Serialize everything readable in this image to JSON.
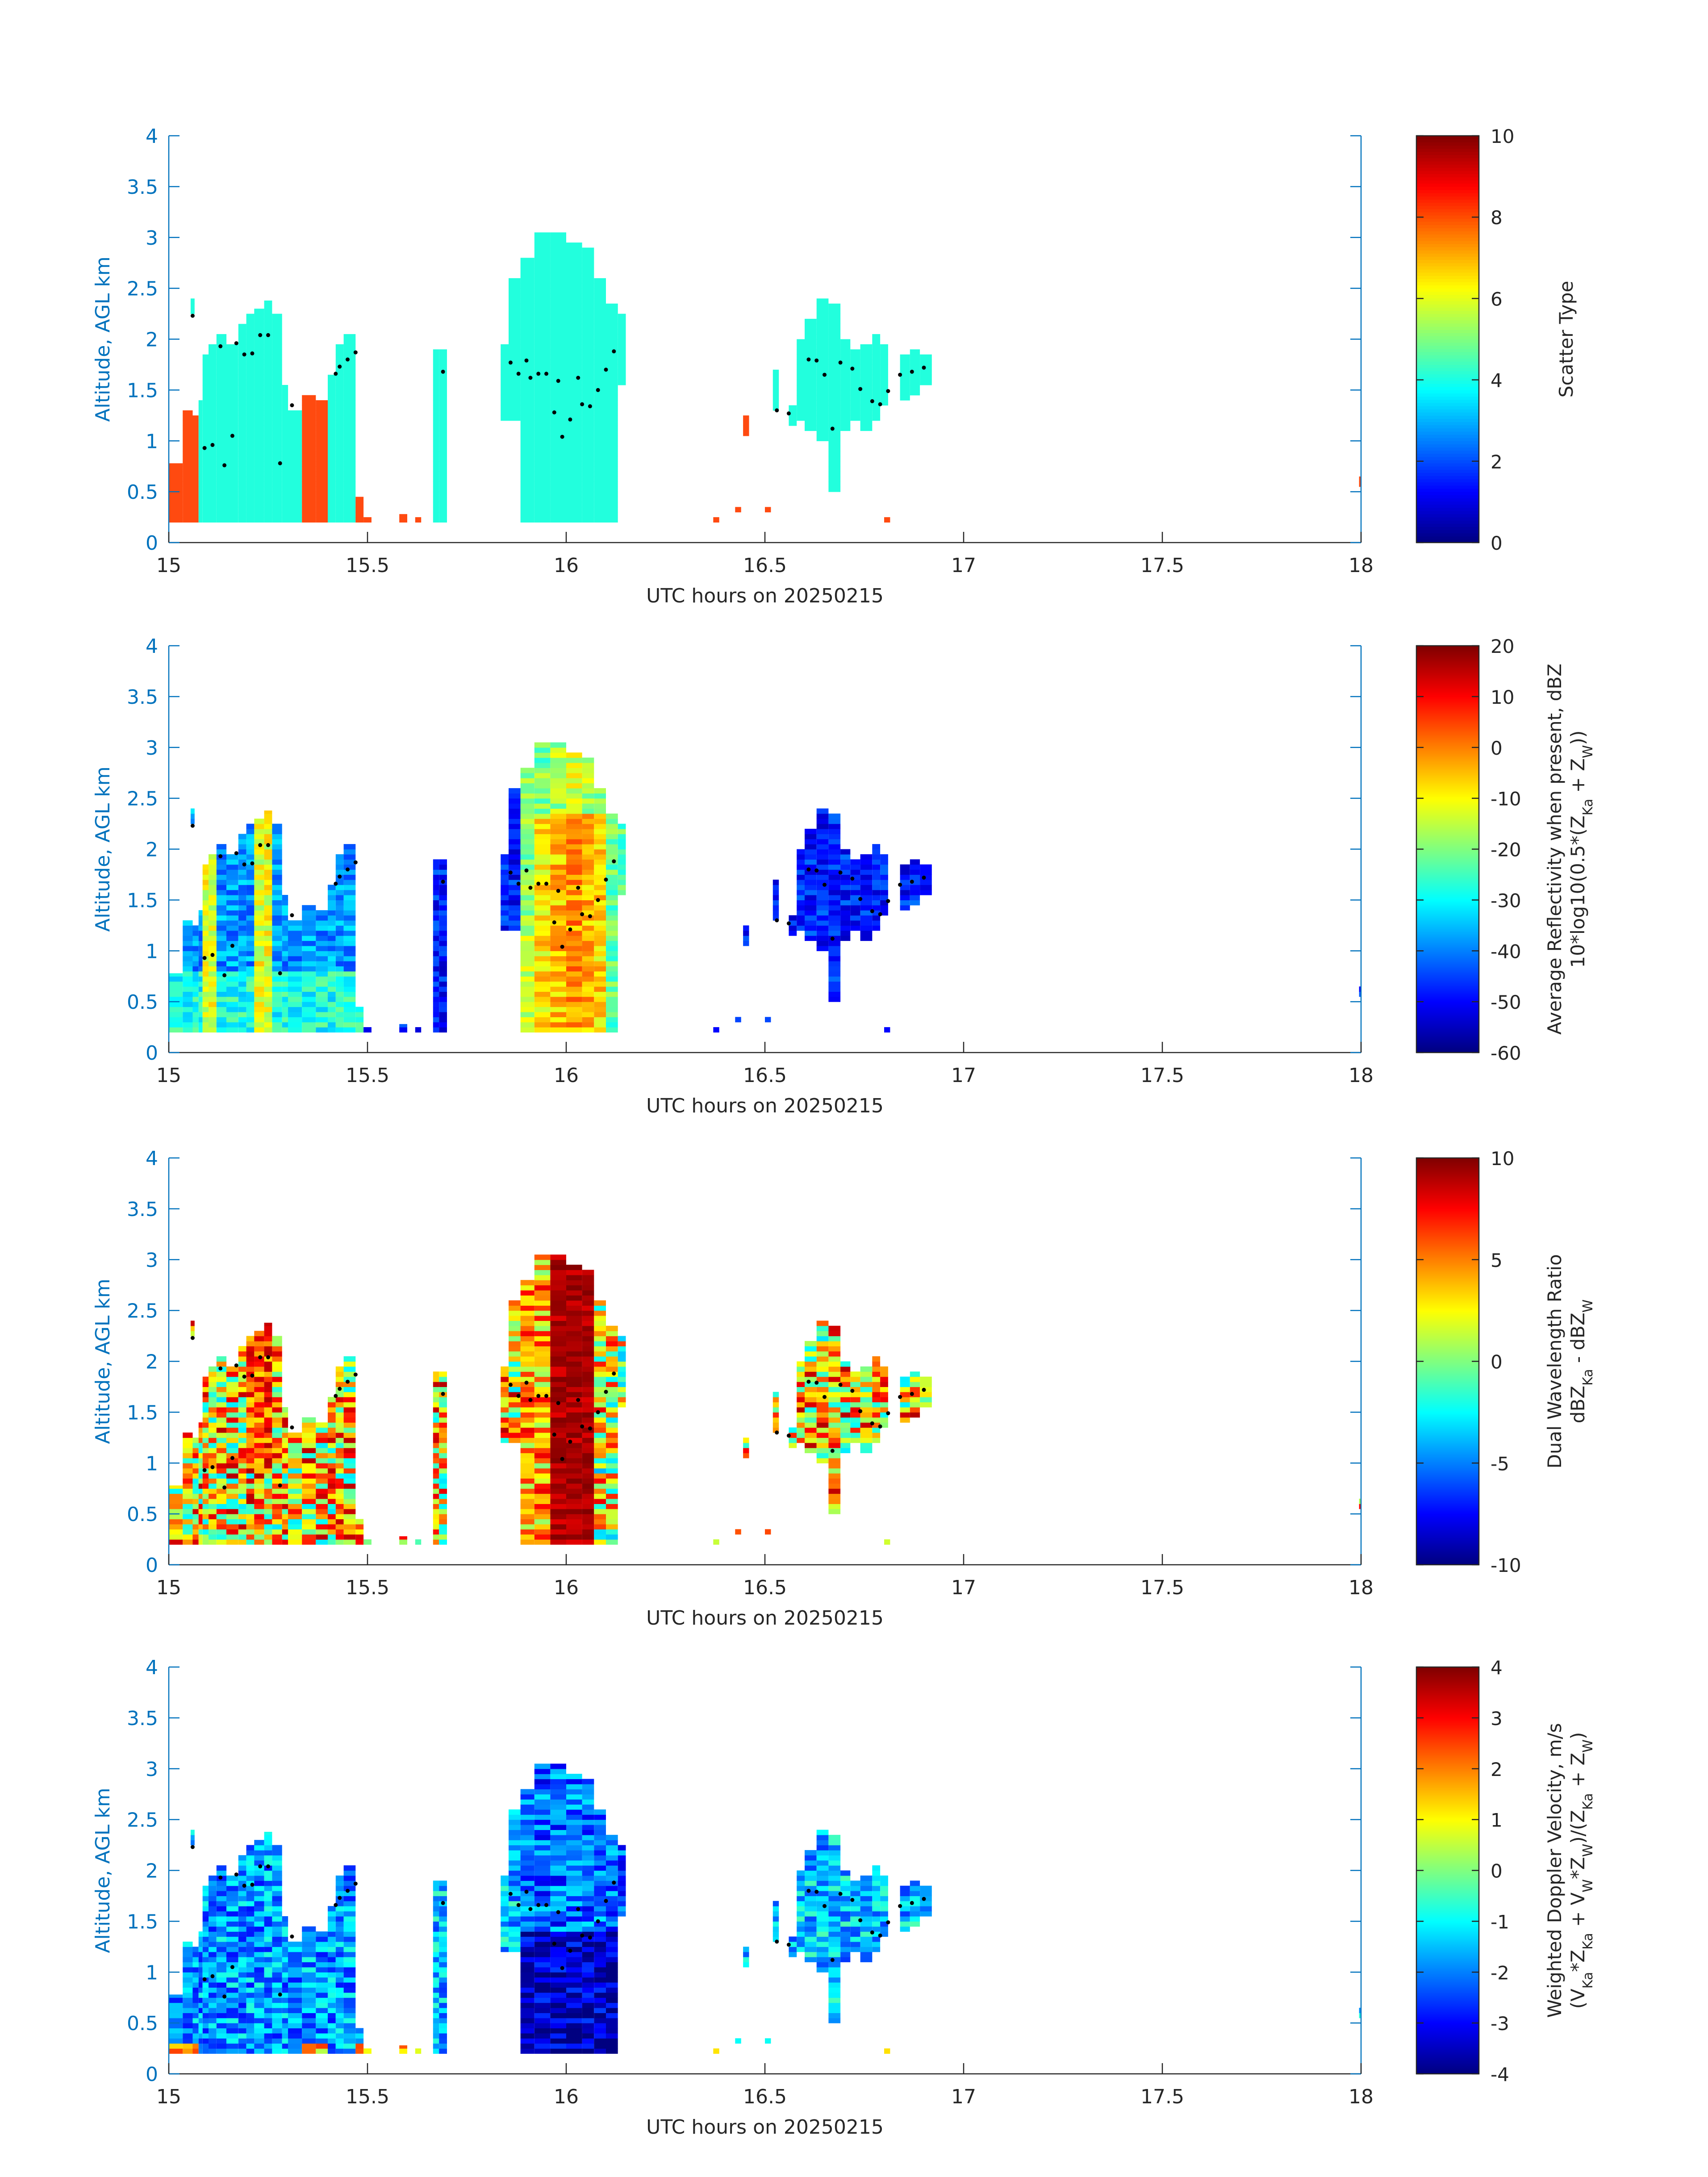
{
  "colors": {
    "axis_blue": "#0072bd",
    "text_dark": "#262626",
    "background": "#ffffff",
    "scatter_ice": "#22ffdd",
    "scatter_liquid": "#ff4a10"
  },
  "chart_data": [
    {
      "type": "heatmap",
      "title": "",
      "xlabel": "UTC hours on 20250215",
      "ylabel": "Altitude, AGL km",
      "xlim": [
        15,
        18
      ],
      "ylim": [
        0,
        4
      ],
      "xticks": [
        "15",
        "15.5",
        "16",
        "16.5",
        "17",
        "17.5",
        "18"
      ],
      "yticks": [
        "0",
        "0.5",
        "1",
        "1.5",
        "2",
        "2.5",
        "3",
        "3.5",
        "4"
      ],
      "colorbar": {
        "label_lines": [
          "Scatter Type"
        ],
        "range": [
          0,
          10
        ],
        "ticks": [
          "0",
          "2",
          "4",
          "6",
          "8",
          "10"
        ],
        "tick_values": [
          0,
          2,
          4,
          6,
          8,
          10
        ]
      },
      "field": "scatter",
      "series": []
    },
    {
      "type": "heatmap",
      "title": "",
      "xlabel": "UTC hours on 20250215",
      "ylabel": "Altitude, AGL km",
      "xlim": [
        15,
        18
      ],
      "ylim": [
        0,
        4
      ],
      "xticks": [
        "15",
        "15.5",
        "16",
        "16.5",
        "17",
        "17.5",
        "18"
      ],
      "yticks": [
        "0",
        "0.5",
        "1",
        "1.5",
        "2",
        "2.5",
        "3",
        "3.5",
        "4"
      ],
      "colorbar": {
        "label_lines": [
          "Average Reflectivity when present, dBZ",
          "10*log10(0.5*(Z_Ka + Z_W))"
        ],
        "range": [
          -60,
          20
        ],
        "ticks": [
          "-60",
          "-50",
          "-40",
          "-30",
          "-20",
          "-10",
          "0",
          "10",
          "20"
        ],
        "tick_values": [
          -60,
          -50,
          -40,
          -30,
          -20,
          -10,
          0,
          10,
          20
        ]
      },
      "field": "reflectivity",
      "series": []
    },
    {
      "type": "heatmap",
      "title": "",
      "xlabel": "UTC hours on 20250215",
      "ylabel": "Altitude, AGL km",
      "xlim": [
        15,
        18
      ],
      "ylim": [
        0,
        4
      ],
      "xticks": [
        "15",
        "15.5",
        "16",
        "16.5",
        "17",
        "17.5",
        "18"
      ],
      "yticks": [
        "0",
        "0.5",
        "1",
        "1.5",
        "2",
        "2.5",
        "3",
        "3.5",
        "4"
      ],
      "colorbar": {
        "label_lines": [
          "Dual Wavelength Ratio",
          "dBZ_Ka - dBZ_W"
        ],
        "range": [
          -10,
          10
        ],
        "ticks": [
          "-10",
          "-5",
          "0",
          "5",
          "10"
        ],
        "tick_values": [
          -10,
          -5,
          0,
          5,
          10
        ]
      },
      "field": "dwr",
      "series": []
    },
    {
      "type": "heatmap",
      "title": "",
      "xlabel": "UTC hours on 20250215",
      "ylabel": "Altitude, AGL km",
      "xlim": [
        15,
        18
      ],
      "ylim": [
        0,
        4
      ],
      "xticks": [
        "15",
        "15.5",
        "16",
        "16.5",
        "17",
        "17.5",
        "18"
      ],
      "yticks": [
        "0",
        "0.5",
        "1",
        "1.5",
        "2",
        "2.5",
        "3",
        "3.5",
        "4"
      ],
      "colorbar": {
        "label_lines": [
          "Weighted Doppler Velocity, m/s",
          "(V_Ka*Z_Ka + V_W*Z_W)/(Z_Ka + Z_W)"
        ],
        "range": [
          -4,
          4
        ],
        "ticks": [
          "-4",
          "-3",
          "-2",
          "-1",
          "0",
          "1",
          "2",
          "3",
          "4"
        ],
        "tick_values": [
          -4,
          -3,
          -2,
          -1,
          0,
          1,
          2,
          3,
          4
        ]
      },
      "field": "velocity",
      "series": []
    }
  ],
  "cloud_base_points": [
    [
      15.06,
      2.23
    ],
    [
      15.09,
      0.93
    ],
    [
      15.11,
      0.96
    ],
    [
      15.13,
      1.93
    ],
    [
      15.14,
      0.76
    ],
    [
      15.16,
      1.05
    ],
    [
      15.17,
      1.96
    ],
    [
      15.19,
      1.85
    ],
    [
      15.21,
      1.86
    ],
    [
      15.23,
      2.04
    ],
    [
      15.25,
      2.04
    ],
    [
      15.28,
      0.78
    ],
    [
      15.31,
      1.35
    ],
    [
      15.42,
      1.66
    ],
    [
      15.43,
      1.73
    ],
    [
      15.45,
      1.8
    ],
    [
      15.47,
      1.87
    ],
    [
      15.69,
      1.68
    ],
    [
      15.86,
      1.77
    ],
    [
      15.88,
      1.66
    ],
    [
      15.9,
      1.79
    ],
    [
      15.91,
      1.62
    ],
    [
      15.93,
      1.66
    ],
    [
      15.95,
      1.66
    ],
    [
      15.97,
      1.28
    ],
    [
      15.98,
      1.59
    ],
    [
      15.99,
      1.04
    ],
    [
      16.01,
      1.21
    ],
    [
      16.03,
      1.62
    ],
    [
      16.04,
      1.36
    ],
    [
      16.06,
      1.34
    ],
    [
      16.08,
      1.5
    ],
    [
      16.1,
      1.7
    ],
    [
      16.12,
      1.88
    ],
    [
      16.53,
      1.3
    ],
    [
      16.56,
      1.27
    ],
    [
      16.61,
      1.8
    ],
    [
      16.63,
      1.79
    ],
    [
      16.65,
      1.65
    ],
    [
      16.67,
      1.12
    ],
    [
      16.69,
      1.77
    ],
    [
      16.72,
      1.71
    ],
    [
      16.74,
      1.51
    ],
    [
      16.77,
      1.39
    ],
    [
      16.79,
      1.36
    ],
    [
      16.81,
      1.49
    ],
    [
      16.84,
      1.65
    ],
    [
      16.87,
      1.68
    ],
    [
      16.9,
      1.72
    ]
  ]
}
